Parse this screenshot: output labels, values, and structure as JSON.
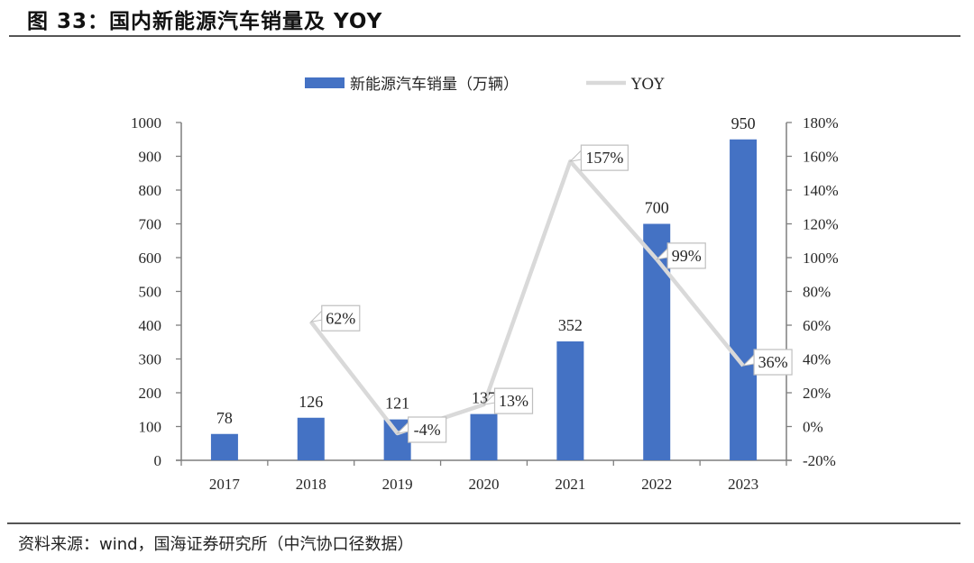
{
  "header": {
    "title": "图 33：国内新能源汽车销量及 YOY"
  },
  "footer": {
    "source": "资料来源：wind，国海证券研究所（中汽协口径数据）"
  },
  "colors": {
    "bar": "#4472C4",
    "line": "#D9D9D9",
    "axis": "#7F7F7F",
    "label_box_border": "#BFBFBF"
  },
  "chart_data": {
    "type": "bar",
    "title": "国内新能源汽车销量及 YOY",
    "categories": [
      "2017",
      "2018",
      "2019",
      "2020",
      "2021",
      "2022",
      "2023"
    ],
    "series": [
      {
        "name": "新能源汽车销量（万辆）",
        "type": "bar",
        "axis": "left",
        "values": [
          78,
          126,
          121,
          137,
          352,
          700,
          950
        ],
        "labels": [
          "78",
          "126",
          "121",
          "137",
          "352",
          "700",
          "950"
        ]
      },
      {
        "name": "YOY",
        "type": "line",
        "axis": "right",
        "values": [
          null,
          62,
          -4,
          13,
          157,
          99,
          36
        ],
        "labels": [
          "",
          "62%",
          "-4%",
          "13%",
          "157%",
          "99%",
          "36%"
        ]
      }
    ],
    "left_axis": {
      "ylim": [
        0,
        1000
      ],
      "ticks": [
        0,
        100,
        200,
        300,
        400,
        500,
        600,
        700,
        800,
        900,
        1000
      ],
      "tick_labels": [
        "0",
        "100",
        "200",
        "300",
        "400",
        "500",
        "600",
        "700",
        "800",
        "900",
        "1000"
      ]
    },
    "right_axis": {
      "ylim": [
        -20,
        180
      ],
      "ticks": [
        -20,
        0,
        20,
        40,
        60,
        80,
        100,
        120,
        140,
        160,
        180
      ],
      "tick_labels": [
        "-20%",
        "0%",
        "20%",
        "40%",
        "60%",
        "80%",
        "100%",
        "120%",
        "140%",
        "160%",
        "180%"
      ]
    },
    "xlabel": "",
    "ylabel": "",
    "grid": false,
    "legend": {
      "position": "top-center",
      "entries": [
        "新能源汽车销量（万辆）",
        "YOY"
      ]
    }
  }
}
